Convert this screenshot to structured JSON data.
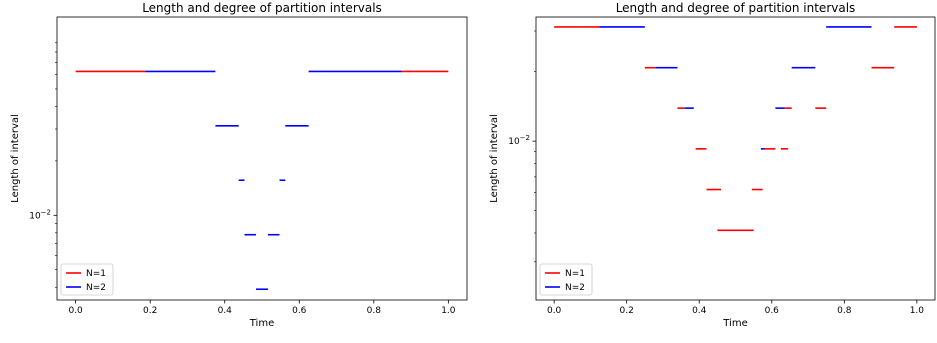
{
  "chart_data": [
    {
      "type": "line",
      "title": "Length and degree of partition intervals",
      "xlabel": "Time",
      "ylabel": "Length of interval",
      "yscale": "log",
      "xlim": [
        -0.05,
        1.05
      ],
      "ylim": [
        0.0034,
        0.125
      ],
      "xticks": [
        0.0,
        0.2,
        0.4,
        0.6,
        0.8,
        1.0
      ],
      "xtick_labels": [
        "0.0",
        "0.2",
        "0.4",
        "0.6",
        "0.8",
        "1.0"
      ],
      "ytick_labels": [
        {
          "label": "10",
          "exp": "−2",
          "value": 0.01
        }
      ],
      "legend": {
        "position": "lower-left",
        "entries": [
          {
            "name": "N=1",
            "color": "#ff0000"
          },
          {
            "name": "N=2",
            "color": "#0000ff"
          }
        ]
      },
      "series": [
        {
          "name": "N=1",
          "color": "#ff0000",
          "segments": [
            {
              "x": [
                0.0,
                0.1875
              ],
              "y": 0.0625
            },
            {
              "x": [
                0.875,
                1.0
              ],
              "y": 0.0625
            }
          ]
        },
        {
          "name": "N=2",
          "color": "#0000ff",
          "segments": [
            {
              "x": [
                0.1875,
                0.375
              ],
              "y": 0.0625
            },
            {
              "x": [
                0.625,
                0.875
              ],
              "y": 0.0625
            },
            {
              "x": [
                0.375,
                0.4375
              ],
              "y": 0.03125
            },
            {
              "x": [
                0.5625,
                0.625
              ],
              "y": 0.03125
            },
            {
              "x": [
                0.4375,
                0.453
              ],
              "y": 0.01563
            },
            {
              "x": [
                0.547,
                0.5625
              ],
              "y": 0.01563
            },
            {
              "x": [
                0.453,
                0.484
              ],
              "y": 0.00781
            },
            {
              "x": [
                0.516,
                0.547
              ],
              "y": 0.00781
            },
            {
              "x": [
                0.484,
                0.516
              ],
              "y": 0.0039
            }
          ]
        }
      ]
    },
    {
      "type": "line",
      "title": "Length and degree of partition intervals",
      "xlabel": "Time",
      "ylabel": "Length of interval",
      "yscale": "log",
      "xlim": [
        -0.05,
        1.05
      ],
      "ylim": [
        0.00205,
        0.0345
      ],
      "xticks": [
        0.0,
        0.2,
        0.4,
        0.6,
        0.8,
        1.0
      ],
      "xtick_labels": [
        "0.0",
        "0.2",
        "0.4",
        "0.6",
        "0.8",
        "1.0"
      ],
      "ytick_labels": [
        {
          "label": "10",
          "exp": "−2",
          "value": 0.01
        }
      ],
      "legend": {
        "position": "lower-left",
        "entries": [
          {
            "name": "N=1",
            "color": "#ff0000"
          },
          {
            "name": "N=2",
            "color": "#0000ff"
          }
        ]
      },
      "series": [
        {
          "name": "N=1",
          "color": "#ff0000",
          "segments": [
            {
              "x": [
                0.0,
                0.125
              ],
              "y": 0.03125
            },
            {
              "x": [
                0.9375,
                1.0
              ],
              "y": 0.03125
            },
            {
              "x": [
                0.25,
                0.28
              ],
              "y": 0.0208
            },
            {
              "x": [
                0.875,
                0.9375
              ],
              "y": 0.0208
            },
            {
              "x": [
                0.34,
                0.36
              ],
              "y": 0.0139
            },
            {
              "x": [
                0.635,
                0.655
              ],
              "y": 0.0139
            },
            {
              "x": [
                0.72,
                0.75
              ],
              "y": 0.0139
            },
            {
              "x": [
                0.39,
                0.42
              ],
              "y": 0.00926
            },
            {
              "x": [
                0.58,
                0.61
              ],
              "y": 0.00926
            },
            {
              "x": [
                0.625,
                0.645
              ],
              "y": 0.00926
            },
            {
              "x": [
                0.42,
                0.46
              ],
              "y": 0.00617
            },
            {
              "x": [
                0.545,
                0.575
              ],
              "y": 0.00617
            },
            {
              "x": [
                0.45,
                0.55
              ],
              "y": 0.00411
            }
          ]
        },
        {
          "name": "N=2",
          "color": "#0000ff",
          "segments": [
            {
              "x": [
                0.125,
                0.25
              ],
              "y": 0.03125
            },
            {
              "x": [
                0.75,
                0.875
              ],
              "y": 0.03125
            },
            {
              "x": [
                0.28,
                0.34
              ],
              "y": 0.0208
            },
            {
              "x": [
                0.655,
                0.72
              ],
              "y": 0.0208
            },
            {
              "x": [
                0.36,
                0.385
              ],
              "y": 0.0139
            },
            {
              "x": [
                0.61,
                0.635
              ],
              "y": 0.0139
            },
            {
              "x": [
                0.57,
                0.58
              ],
              "y": 0.00926
            }
          ]
        }
      ]
    }
  ]
}
